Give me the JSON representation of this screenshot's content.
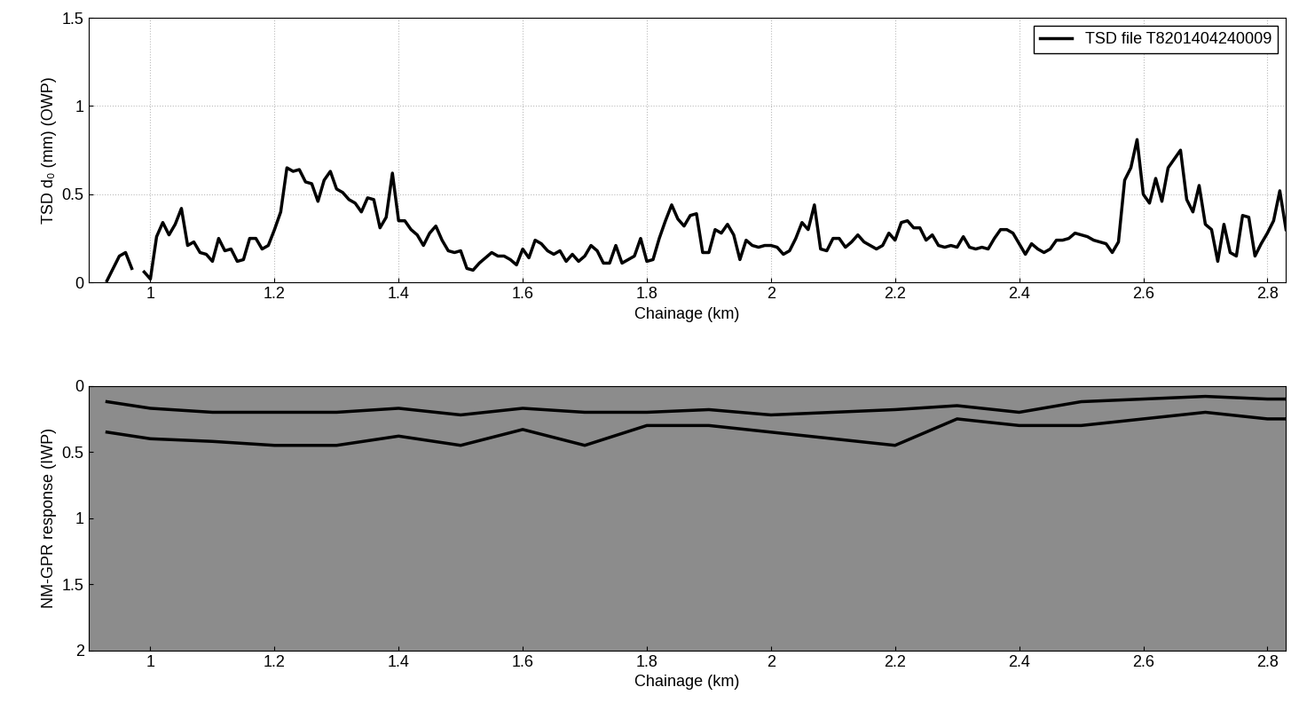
{
  "chart_data": [
    {
      "type": "line",
      "xlabel": "Chainage (km)",
      "ylabel": "TSD d₀ (mm) (OWP)",
      "xlim": [
        0.9,
        2.83
      ],
      "ylim": [
        0,
        1.5
      ],
      "xticks": [
        1,
        1.2,
        1.4,
        1.6,
        1.8,
        2,
        2.2,
        2.4,
        2.6,
        2.8
      ],
      "yticks": [
        0,
        0.5,
        1,
        1.5
      ],
      "grid": true,
      "legend": "upper right",
      "x": [
        0.93,
        0.94,
        0.95,
        0.96,
        0.97,
        0.98,
        0.99,
        1.0,
        1.01,
        1.02,
        1.03,
        1.04,
        1.05,
        1.06,
        1.07,
        1.08,
        1.09,
        1.1,
        1.11,
        1.12,
        1.13,
        1.14,
        1.15,
        1.16,
        1.17,
        1.18,
        1.19,
        1.2,
        1.21,
        1.22,
        1.23,
        1.24,
        1.25,
        1.26,
        1.27,
        1.28,
        1.29,
        1.3,
        1.31,
        1.32,
        1.33,
        1.34,
        1.35,
        1.36,
        1.37,
        1.38,
        1.39,
        1.4,
        1.41,
        1.42,
        1.43,
        1.44,
        1.45,
        1.46,
        1.47,
        1.48,
        1.49,
        1.5,
        1.51,
        1.52,
        1.53,
        1.54,
        1.55,
        1.56,
        1.57,
        1.58,
        1.59,
        1.6,
        1.61,
        1.62,
        1.63,
        1.64,
        1.65,
        1.66,
        1.67,
        1.68,
        1.69,
        1.7,
        1.71,
        1.72,
        1.73,
        1.74,
        1.75,
        1.76,
        1.77,
        1.78,
        1.79,
        1.8,
        1.81,
        1.82,
        1.83,
        1.84,
        1.85,
        1.86,
        1.87,
        1.88,
        1.89,
        1.9,
        1.91,
        1.92,
        1.93,
        1.94,
        1.95,
        1.96,
        1.97,
        1.98,
        1.99,
        2.0,
        2.01,
        2.02,
        2.03,
        2.04,
        2.05,
        2.06,
        2.07,
        2.08,
        2.09,
        2.1,
        2.11,
        2.12,
        2.13,
        2.14,
        2.15,
        2.16,
        2.17,
        2.18,
        2.19,
        2.2,
        2.21,
        2.22,
        2.23,
        2.24,
        2.25,
        2.26,
        2.27,
        2.28,
        2.29,
        2.3,
        2.31,
        2.32,
        2.33,
        2.34,
        2.35,
        2.36,
        2.37,
        2.38,
        2.39,
        2.4,
        2.41,
        2.42,
        2.43,
        2.44,
        2.45,
        2.46,
        2.47,
        2.48,
        2.49,
        2.5,
        2.51,
        2.52,
        2.53,
        2.54,
        2.55,
        2.56,
        2.57,
        2.58,
        2.59,
        2.6,
        2.61,
        2.62,
        2.63,
        2.64,
        2.65,
        2.66,
        2.67,
        2.68,
        2.69,
        2.7,
        2.71,
        2.72,
        2.73,
        2.74,
        2.75,
        2.76,
        2.77,
        2.78,
        2.79,
        2.8,
        2.81,
        2.82,
        2.83
      ],
      "series": [
        {
          "name": "TSD file T8201404240009",
          "color": "#000000",
          "line_style": "solid",
          "values": [
            0.01,
            0.08,
            0.15,
            0.17,
            0.08,
            null,
            0.06,
            0.02,
            0.26,
            0.34,
            0.27,
            0.33,
            0.42,
            0.21,
            0.23,
            0.17,
            0.16,
            0.12,
            0.25,
            0.18,
            0.19,
            0.12,
            0.13,
            0.25,
            0.25,
            0.19,
            0.21,
            0.3,
            0.4,
            0.65,
            0.63,
            0.64,
            0.57,
            0.56,
            0.46,
            0.58,
            0.63,
            0.53,
            0.51,
            0.47,
            0.45,
            0.4,
            0.48,
            0.47,
            0.31,
            0.37,
            0.62,
            0.35,
            0.35,
            0.3,
            0.27,
            0.21,
            0.28,
            0.32,
            0.24,
            0.18,
            0.17,
            0.18,
            0.08,
            0.07,
            0.11,
            0.14,
            0.17,
            0.15,
            0.15,
            0.13,
            0.1,
            0.19,
            0.14,
            0.24,
            0.22,
            0.18,
            0.16,
            0.18,
            0.12,
            0.16,
            0.12,
            0.15,
            0.21,
            0.18,
            0.11,
            0.11,
            0.21,
            0.11,
            0.13,
            0.15,
            0.25,
            0.12,
            0.13,
            0.25,
            0.35,
            0.44,
            0.36,
            0.32,
            0.38,
            0.39,
            0.17,
            0.17,
            0.3,
            0.28,
            0.33,
            0.27,
            0.13,
            0.24,
            0.21,
            0.2,
            0.21,
            0.21,
            0.2,
            0.16,
            0.18,
            0.25,
            0.34,
            0.3,
            0.44,
            0.19,
            0.18,
            0.25,
            0.25,
            0.2,
            0.23,
            0.27,
            0.23,
            0.21,
            0.19,
            0.21,
            0.28,
            0.24,
            0.34,
            0.35,
            0.31,
            0.31,
            0.24,
            0.27,
            0.21,
            0.2,
            0.21,
            0.2,
            0.26,
            0.2,
            0.19,
            0.2,
            0.19,
            0.25,
            0.3,
            0.3,
            0.28,
            0.22,
            0.16,
            0.22,
            0.19,
            0.17,
            0.19,
            0.24,
            0.24,
            0.25,
            0.28,
            0.27,
            0.26,
            0.24,
            0.23,
            0.22,
            0.17,
            0.23,
            0.58,
            0.65,
            0.81,
            0.5,
            0.45,
            0.59,
            0.46,
            0.65,
            0.7,
            0.75,
            0.47,
            0.4,
            0.55,
            0.33,
            0.3,
            0.12,
            0.33,
            0.17,
            0.15,
            0.38,
            0.37,
            0.15,
            0.22,
            0.28,
            0.35,
            0.52,
            0.3
          ]
        }
      ]
    },
    {
      "type": "line",
      "xlabel": "Chainage (km)",
      "ylabel": "NM-GPR response (IWP)",
      "xlim": [
        0.9,
        2.83
      ],
      "ylim": [
        2,
        0
      ],
      "xticks": [
        1,
        1.2,
        1.4,
        1.6,
        1.8,
        2,
        2.2,
        2.4,
        2.6,
        2.8
      ],
      "yticks": [
        0,
        0.5,
        1,
        1.5,
        2
      ],
      "grid": false,
      "x": [
        0.93,
        1.0,
        1.1,
        1.2,
        1.3,
        1.4,
        1.5,
        1.6,
        1.7,
        1.8,
        1.9,
        2.0,
        2.1,
        2.2,
        2.3,
        2.4,
        2.5,
        2.6,
        2.7,
        2.8,
        2.83
      ],
      "series": [
        {
          "color": "#000000",
          "line_style": "solid",
          "values": [
            0.12,
            0.17,
            0.2,
            0.2,
            0.2,
            0.17,
            0.22,
            0.17,
            0.2,
            0.2,
            0.18,
            0.22,
            0.2,
            0.18,
            0.15,
            0.2,
            0.12,
            0.1,
            0.08,
            0.1,
            0.1
          ]
        },
        {
          "color": "#000000",
          "line_style": "solid",
          "values": [
            0.35,
            0.4,
            0.42,
            0.45,
            0.45,
            0.38,
            0.45,
            0.33,
            0.45,
            0.3,
            0.3,
            0.35,
            0.4,
            0.45,
            0.25,
            0.3,
            0.3,
            0.25,
            0.2,
            0.25,
            0.25
          ]
        }
      ]
    }
  ]
}
